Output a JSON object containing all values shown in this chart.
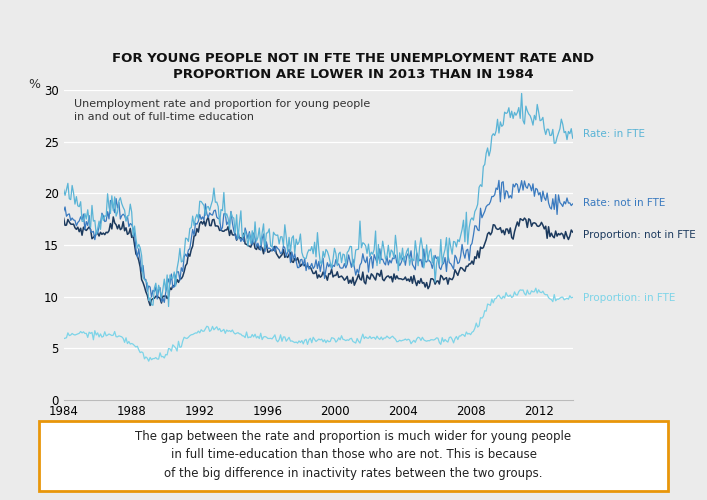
{
  "title": "FOR YOUNG PEOPLE NOT IN FTE THE UNEMPLOYMENT RATE AND\nPROPORTION ARE LOWER IN 2013 THAN IN 1984",
  "subtitle": "Unemployment rate and proportion for young people\nin and out of full-time education",
  "ylabel": "%",
  "ylim": [
    0,
    30
  ],
  "yticks": [
    0,
    5,
    10,
    15,
    20,
    25,
    30
  ],
  "xlim": [
    1984,
    2014
  ],
  "xticks": [
    1984,
    1988,
    1992,
    1996,
    2000,
    2004,
    2008,
    2012
  ],
  "caption": "The gap between the rate and proportion is much wider for young people\nin full time-education than those who are not. This is because\nof the big difference in inactivity rates between the two groups.",
  "color_rate_fte": "#5ab4d6",
  "color_rate_not_fte": "#3a7abf",
  "color_prop_not_fte": "#1c3a5e",
  "color_prop_fte": "#7dd4e8",
  "caption_box_color": "#e8960a",
  "bg_color": "#ebebeb",
  "plot_bg": "#ebebeb",
  "grid_color": "#ffffff",
  "label_rate_fte": "Rate: in FTE",
  "label_rate_not_fte": "Rate: not in FTE",
  "label_prop_not_fte": "Proportion: not in FTE",
  "label_prop_fte": "Proportion: in FTE"
}
